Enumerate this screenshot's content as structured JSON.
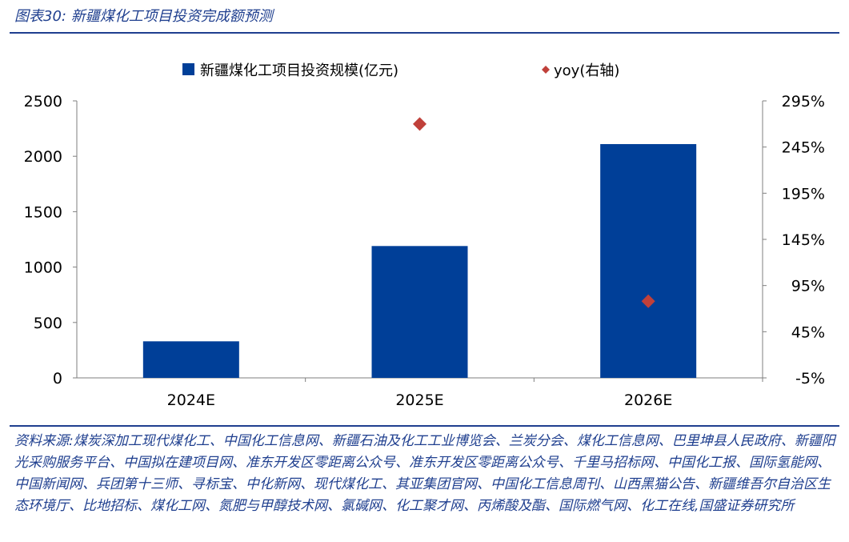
{
  "header": {
    "title": "图表30:  新疆煤化工项目投资完成额预测"
  },
  "footer": {
    "source": "资料来源:煤炭深加工现代煤化工、中国化工信息网、新疆石油及化工工业博览会、兰炭分会、煤化工信息网、巴里坤县人民政府、新疆阳光采购服务平台、中国拟在建项目网、准东开发区零距离公众号、准东开发区零距离公众号、千里马招标网、中国化工报、国际氢能网、中国新闻网、兵团第十三师、寻标宝、中化新网、现代煤化工、其亚集团官网、中国化工信息周刊、山西黑猫公告、新疆维吾尔自治区生态环境厅、比地招标、煤化工网、氮肥与甲醇技术网、氯碱网、化工聚才网、丙烯酸及酯、国际燃气网、化工在线,国盛证券研究所"
  },
  "chart_data": {
    "type": "bar",
    "categories": [
      "2024E",
      "2025E",
      "2026E"
    ],
    "series": [
      {
        "name": "新疆煤化工项目投资规模(亿元)",
        "type": "bar",
        "axis": "left",
        "color": "#003f98",
        "values": [
          330,
          1190,
          2110
        ]
      },
      {
        "name": "yoy(右轴)",
        "type": "scatter",
        "axis": "right",
        "color": "#c0403a",
        "values": [
          null,
          270,
          78
        ]
      }
    ],
    "y_left": {
      "min": 0,
      "max": 2500,
      "ticks": [
        "0",
        "500",
        "1000",
        "1500",
        "2000",
        "2500"
      ]
    },
    "y_right": {
      "min": -5,
      "max": 295,
      "ticks": [
        "-5%",
        "45%",
        "95%",
        "145%",
        "195%",
        "245%",
        "295%"
      ]
    },
    "grid": false,
    "legend": "top"
  }
}
